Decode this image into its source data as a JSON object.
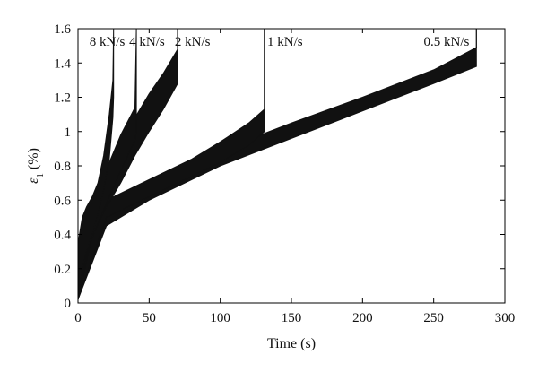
{
  "chart_data": {
    "type": "line",
    "xlabel": "Time (s)",
    "ylabel": "ε",
    "ylabel_subscript": "1",
    "ylabel_unit": "(%)",
    "xlim": [
      0,
      300
    ],
    "ylim": [
      0,
      1.6
    ],
    "xticks": [
      0,
      50,
      100,
      150,
      200,
      250,
      300
    ],
    "yticks": [
      0,
      0.2,
      0.4,
      0.6,
      0.8,
      1,
      1.2,
      1.4,
      1.6
    ],
    "xtick_labels": [
      "0",
      "50",
      "100",
      "150",
      "200",
      "250",
      "300"
    ],
    "ytick_labels": [
      "0",
      "0.2",
      "0.4",
      "0.6",
      "0.8",
      "1",
      "1.2",
      "1.4",
      "1.6"
    ],
    "grid": false,
    "series": [
      {
        "name": "8 kN/s",
        "label_x": 8,
        "failure_time": 25,
        "x": [
          0,
          3,
          6,
          10,
          14,
          18,
          22,
          24.5,
          25
        ],
        "lower": [
          0.02,
          0.2,
          0.3,
          0.4,
          0.52,
          0.66,
          0.84,
          1.08,
          1.2
        ],
        "upper": [
          0.35,
          0.5,
          0.56,
          0.62,
          0.7,
          0.86,
          1.1,
          1.3,
          1.6
        ]
      },
      {
        "name": "4 kN/s",
        "label_x": 36,
        "failure_time": 41,
        "x": [
          0,
          5,
          10,
          15,
          20,
          25,
          30,
          35,
          40,
          41
        ],
        "lower": [
          0.02,
          0.26,
          0.38,
          0.48,
          0.58,
          0.68,
          0.77,
          0.86,
          0.95,
          1.0
        ],
        "upper": [
          0.35,
          0.5,
          0.58,
          0.68,
          0.78,
          0.88,
          0.98,
          1.06,
          1.14,
          1.6
        ]
      },
      {
        "name": "2 kN/s",
        "label_x": 68,
        "failure_time": 70,
        "x": [
          0,
          10,
          20,
          30,
          40,
          50,
          60,
          70
        ],
        "lower": [
          0.02,
          0.4,
          0.56,
          0.7,
          0.86,
          1.0,
          1.13,
          1.28
        ],
        "upper": [
          0.35,
          0.58,
          0.75,
          0.92,
          1.08,
          1.22,
          1.34,
          1.48
        ]
      },
      {
        "name": "1 kN/s",
        "label_x": 133,
        "failure_time": 131,
        "x": [
          0,
          20,
          40,
          60,
          80,
          100,
          120,
          131
        ],
        "lower": [
          0.02,
          0.5,
          0.58,
          0.66,
          0.74,
          0.82,
          0.92,
          1.0
        ],
        "upper": [
          0.35,
          0.6,
          0.68,
          0.76,
          0.84,
          0.94,
          1.05,
          1.13
        ]
      },
      {
        "name": "0.5 kN/s",
        "label_x": 243,
        "failure_time": 280,
        "x": [
          0,
          20,
          50,
          100,
          150,
          200,
          250,
          280
        ],
        "lower": [
          0.02,
          0.45,
          0.6,
          0.8,
          0.96,
          1.12,
          1.28,
          1.38
        ],
        "upper": [
          0.35,
          0.56,
          0.7,
          0.89,
          1.05,
          1.2,
          1.36,
          1.49
        ]
      }
    ]
  }
}
